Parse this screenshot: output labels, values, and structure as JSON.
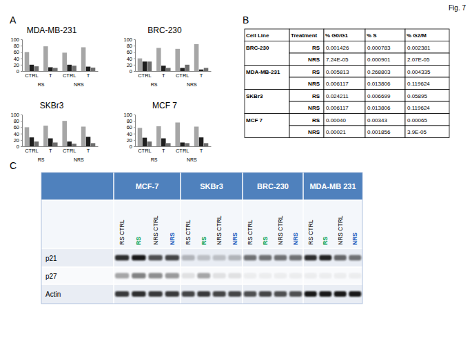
{
  "figure_label": "Fig. 7",
  "panel_labels": [
    "A",
    "B",
    "C"
  ],
  "chart_data": [
    {
      "type": "bar",
      "title": "MDA-MB-231",
      "categories": [
        "CTRL",
        "T",
        "CTRL",
        "T"
      ],
      "group_labels": [
        "RS",
        "NRS"
      ],
      "ylim": [
        0,
        100
      ],
      "yticks": [
        0,
        20,
        40,
        60,
        80,
        100
      ],
      "series": [
        {
          "color": "#a6a6a6",
          "values": [
            60,
            78,
            58,
            75
          ]
        },
        {
          "color": "#1f1f1f",
          "values": [
            20,
            12,
            20,
            14
          ]
        },
        {
          "color": "#6e6e6e",
          "values": [
            15,
            10,
            17,
            11
          ]
        }
      ]
    },
    {
      "type": "bar",
      "title": "BRC-230",
      "categories": [
        "CTRL",
        "T",
        "CTRL",
        "T"
      ],
      "group_labels": [
        "RS",
        "NRS"
      ],
      "ylim": [
        0,
        100
      ],
      "yticks": [
        0,
        20,
        40,
        60,
        80,
        100
      ],
      "series": [
        {
          "color": "#a6a6a6",
          "values": [
            40,
            73,
            70,
            85
          ]
        },
        {
          "color": "#1f1f1f",
          "values": [
            30,
            17,
            10,
            5
          ]
        },
        {
          "color": "#6e6e6e",
          "values": [
            30,
            10,
            20,
            10
          ]
        }
      ]
    },
    {
      "type": "bar",
      "title": "SKBr3",
      "categories": [
        "CTRL",
        "T",
        "CTRL",
        "T"
      ],
      "group_labels": [
        "RS",
        "NRS"
      ],
      "ylim": [
        0,
        100
      ],
      "yticks": [
        0,
        20,
        40,
        60,
        80,
        100
      ],
      "series": [
        {
          "color": "#a6a6a6",
          "values": [
            60,
            65,
            80,
            62
          ]
        },
        {
          "color": "#1f1f1f",
          "values": [
            28,
            25,
            15,
            30
          ]
        },
        {
          "color": "#6e6e6e",
          "values": [
            15,
            12,
            8,
            10
          ]
        }
      ]
    },
    {
      "type": "bar",
      "title": "MCF 7",
      "categories": [
        "CTRL",
        "T",
        "CTRL",
        "T"
      ],
      "group_labels": [
        "RS",
        "NRS"
      ],
      "ylim": [
        0,
        100
      ],
      "yticks": [
        0,
        20,
        40,
        60,
        80,
        100
      ],
      "series": [
        {
          "color": "#a6a6a6",
          "values": [
            58,
            63,
            75,
            62
          ]
        },
        {
          "color": "#1f1f1f",
          "values": [
            27,
            25,
            12,
            28
          ]
        },
        {
          "color": "#6e6e6e",
          "values": [
            15,
            10,
            10,
            10
          ]
        }
      ]
    }
  ],
  "table": {
    "header": [
      "Cell Line",
      "Treatment",
      "% G0/G1",
      "% S",
      "% G2/M"
    ],
    "groups": [
      {
        "cell_line": "BRC-230",
        "rows": [
          [
            "RS",
            "0.001426",
            "0.000783",
            "0.002381"
          ],
          [
            "NRS",
            "7.24E-05",
            "0.000901",
            "2.07E-05"
          ]
        ]
      },
      {
        "cell_line": "MDA-MB-231",
        "rows": [
          [
            "RS",
            "0.005813",
            "0.268803",
            "0.004335"
          ],
          [
            "NRS",
            "0.006117",
            "0.013806",
            "0.119624"
          ]
        ]
      },
      {
        "cell_line": "SKBr3",
        "rows": [
          [
            "RS",
            "0.024211",
            "0.006699",
            "0.05895"
          ],
          [
            "NRS",
            "0.006117",
            "0.013806",
            "0.119624"
          ]
        ]
      },
      {
        "cell_line": "MCF 7",
        "rows": [
          [
            "RS",
            "0.00040",
            "0.00343",
            "0.00065"
          ],
          [
            "NRS",
            "0.00021",
            "0.001856",
            "3.9E-05"
          ]
        ]
      }
    ]
  },
  "blot": {
    "cell_lines": [
      "MCF-7",
      "SKBr3",
      "BRC-230",
      "MDA-MB 231"
    ],
    "lanes": [
      {
        "label": "RS CTRL",
        "color": "#000000"
      },
      {
        "label": "RS",
        "color": "#00a050"
      },
      {
        "label": "NRS CTRL",
        "color": "#000000"
      },
      {
        "label": "NRS",
        "color": "#1f5fbf"
      }
    ],
    "rows": [
      "p21",
      "p27",
      "Actin"
    ]
  }
}
